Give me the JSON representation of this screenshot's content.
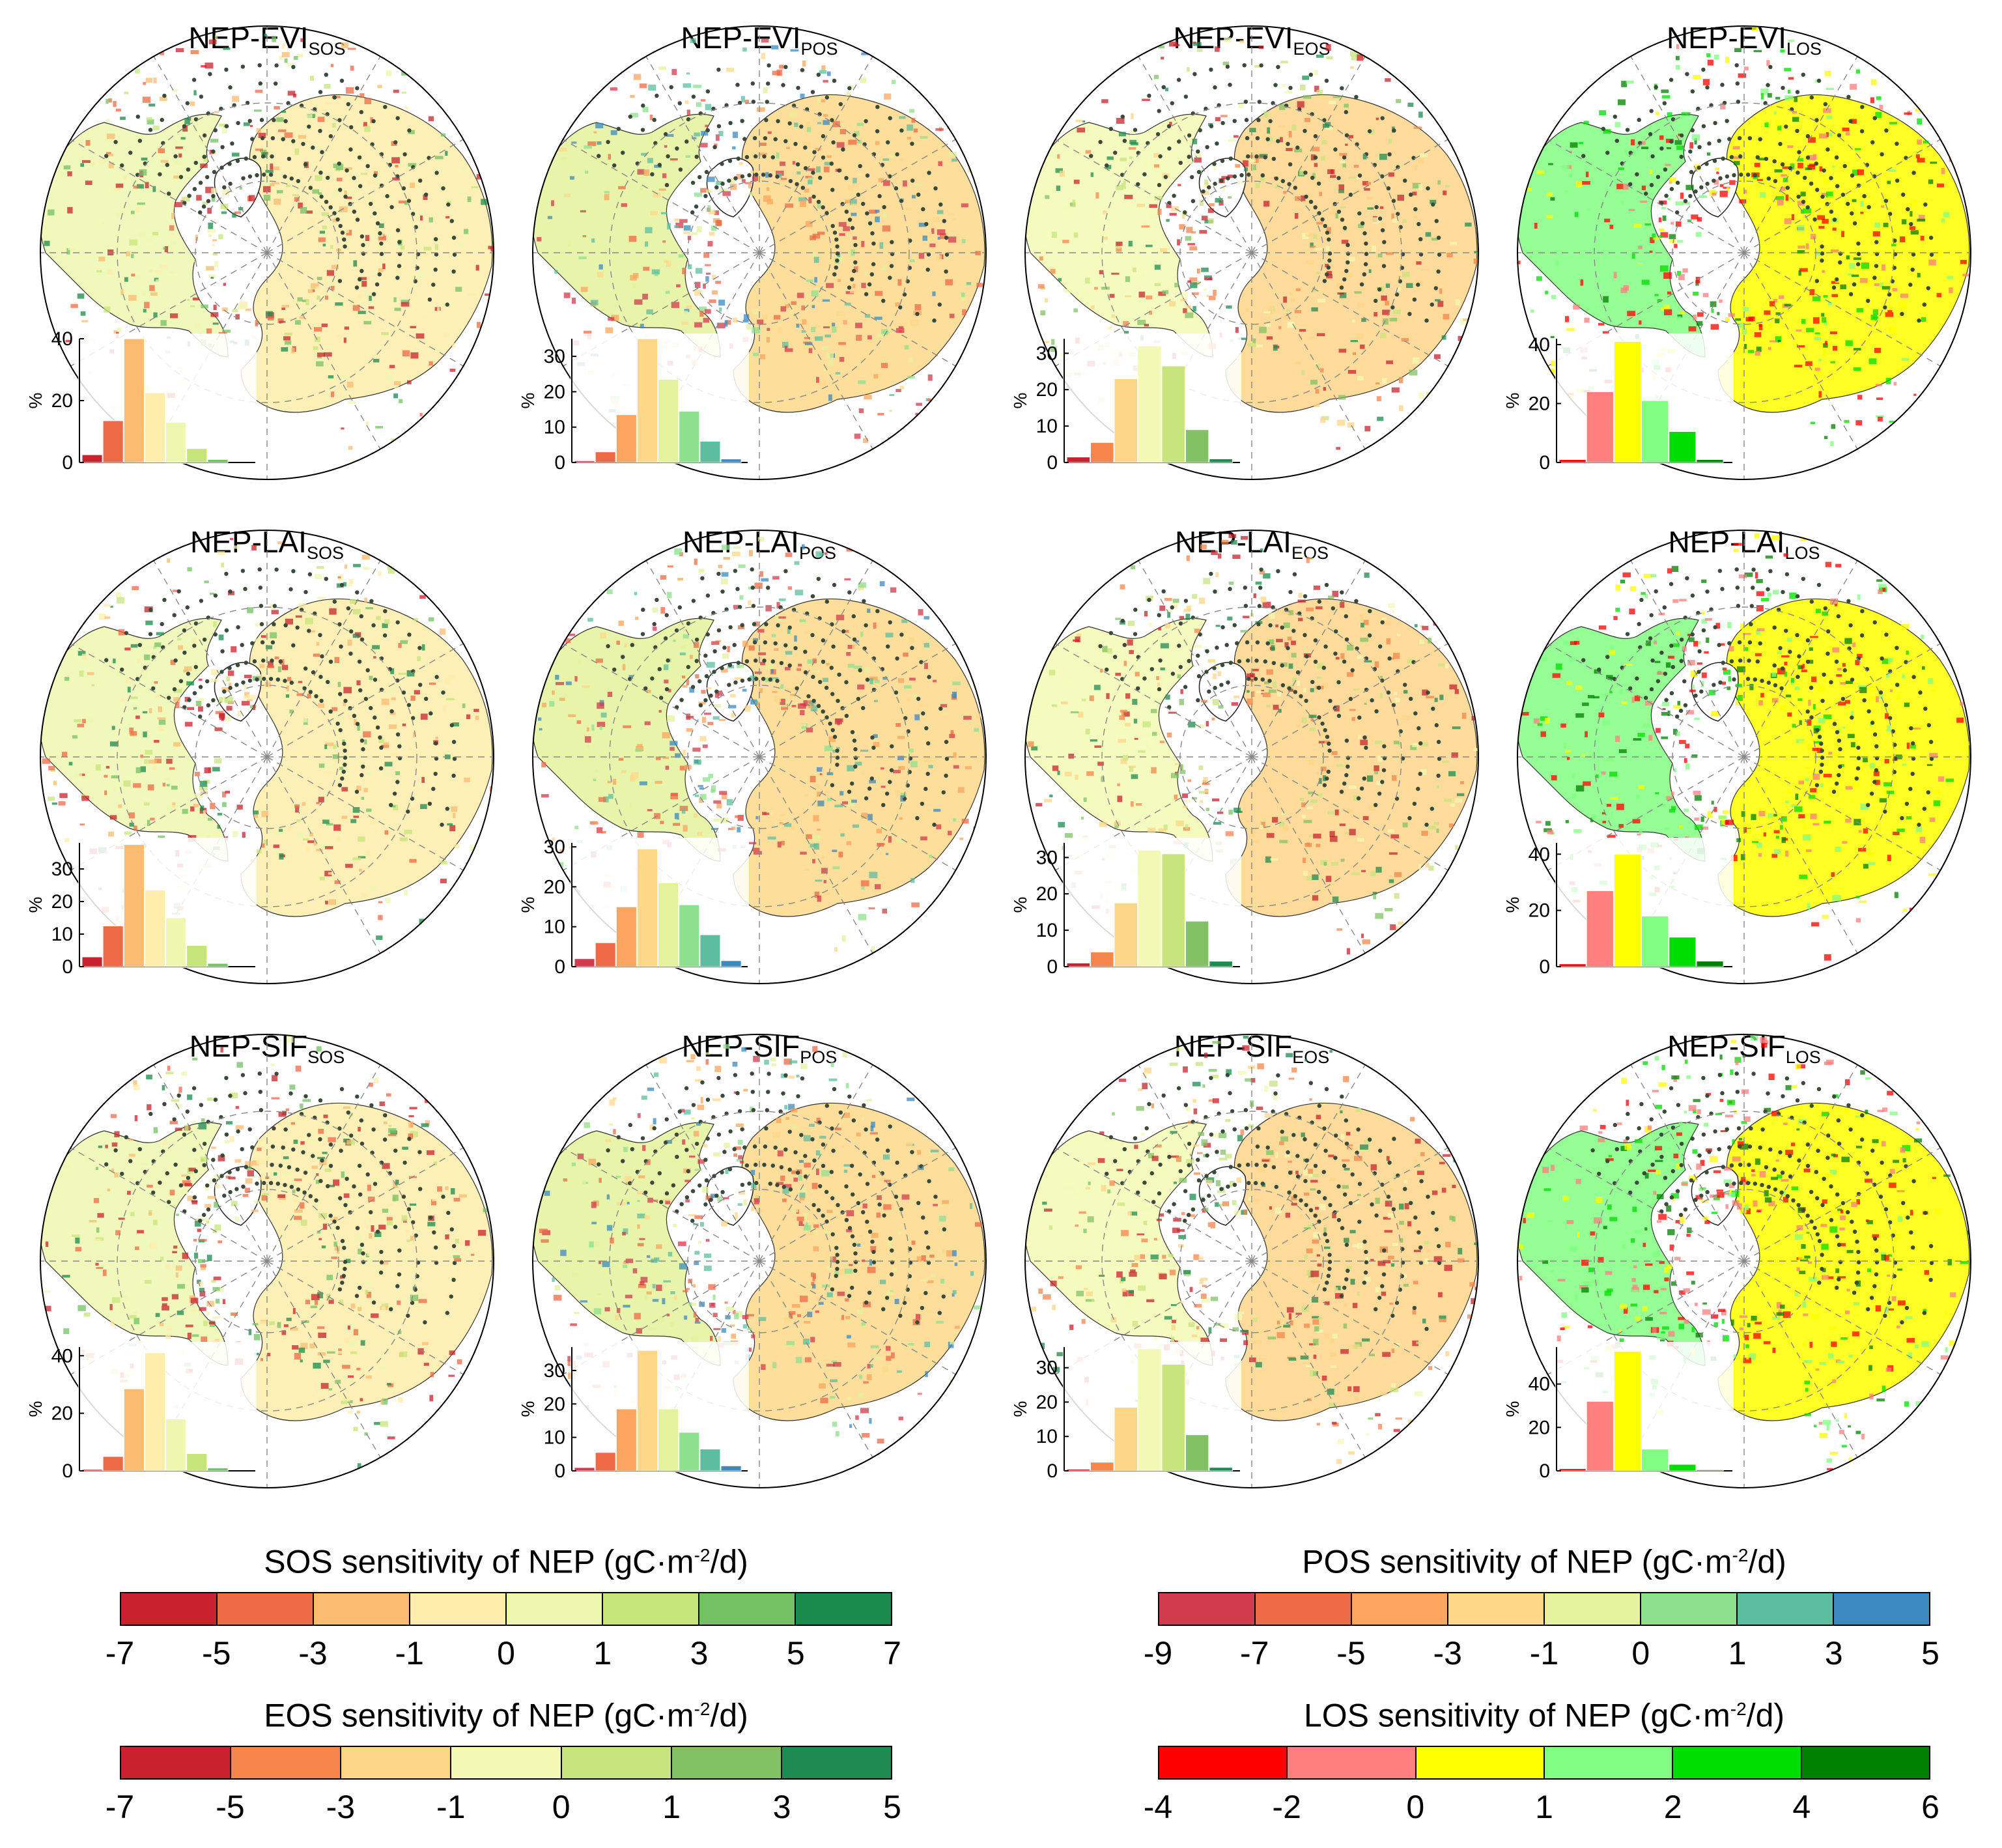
{
  "colors": {
    "SOS": [
      "#c8232c",
      "#ee6a45",
      "#fbbb71",
      "#fdedaa",
      "#eef7b0",
      "#c5e57a",
      "#72c264",
      "#1a8b4c"
    ],
    "POS": [
      "#d13b4c",
      "#ee6a45",
      "#fba55e",
      "#fdd889",
      "#e4f29b",
      "#8de08d",
      "#5cbe9f",
      "#3b89c0"
    ],
    "EOS": [
      "#c8232c",
      "#f6864c",
      "#fdd588",
      "#f3f9b4",
      "#c8e47f",
      "#82c265",
      "#1e8c50"
    ],
    "LOS": [
      "#ff0000",
      "#ff7e7e",
      "#ffff00",
      "#82ff82",
      "#00dd00",
      "#008000"
    ]
  },
  "panels": [
    {
      "id": "evi-sos",
      "row": 0,
      "col": 0,
      "title": "NEP-EVI",
      "sub": "SOS",
      "scheme": "SOS",
      "ytop": 40,
      "yticks": [
        0,
        20,
        40
      ],
      "hist": [
        2.5,
        13.5,
        40,
        22.5,
        13,
        4.5,
        1,
        0
      ]
    },
    {
      "id": "evi-pos",
      "row": 0,
      "col": 1,
      "title": "NEP-EVI",
      "sub": "POS",
      "scheme": "POS",
      "ytop": 35,
      "yticks": [
        0,
        10,
        20,
        30
      ],
      "hist": [
        0.5,
        3,
        13.5,
        35,
        23.5,
        14.5,
        6,
        1
      ]
    },
    {
      "id": "evi-eos",
      "row": 0,
      "col": 2,
      "title": "NEP-EVI",
      "sub": "EOS",
      "scheme": "EOS",
      "ytop": 34,
      "yticks": [
        0,
        10,
        20,
        30
      ],
      "hist": [
        1.5,
        5.5,
        23,
        32,
        26.5,
        9,
        1
      ]
    },
    {
      "id": "evi-los",
      "row": 0,
      "col": 3,
      "title": "NEP-EVI",
      "sub": "LOS",
      "scheme": "LOS",
      "ytop": 42,
      "yticks": [
        0,
        20,
        40
      ],
      "hist": [
        1,
        24,
        41,
        21,
        10.5,
        1
      ]
    },
    {
      "id": "lai-sos",
      "row": 1,
      "col": 0,
      "title": "NEP-LAI",
      "sub": "SOS",
      "scheme": "SOS",
      "ytop": 38,
      "yticks": [
        0,
        10,
        20,
        30
      ],
      "hist": [
        3,
        12.5,
        37.5,
        23.5,
        15,
        6.5,
        1,
        0
      ]
    },
    {
      "id": "lai-pos",
      "row": 1,
      "col": 1,
      "title": "NEP-LAI",
      "sub": "POS",
      "scheme": "POS",
      "ytop": 31,
      "yticks": [
        0,
        10,
        20,
        30
      ],
      "hist": [
        2,
        6,
        15,
        29.5,
        21,
        15.5,
        8,
        1.5
      ]
    },
    {
      "id": "lai-eos",
      "row": 1,
      "col": 2,
      "title": "NEP-LAI",
      "sub": "EOS",
      "scheme": "EOS",
      "ytop": 34,
      "yticks": [
        0,
        10,
        20,
        30
      ],
      "hist": [
        1,
        4,
        17.5,
        32,
        31,
        12.5,
        1.5
      ]
    },
    {
      "id": "lai-los",
      "row": 1,
      "col": 3,
      "title": "NEP-LAI",
      "sub": "LOS",
      "scheme": "LOS",
      "ytop": 44,
      "yticks": [
        0,
        20,
        40
      ],
      "hist": [
        1,
        27,
        40,
        18,
        10.5,
        2
      ]
    },
    {
      "id": "sif-sos",
      "row": 2,
      "col": 0,
      "title": "NEP-SIF",
      "sub": "SOS",
      "scheme": "SOS",
      "ytop": 43,
      "yticks": [
        0,
        20,
        40
      ],
      "hist": [
        0.5,
        5,
        28.5,
        41,
        18,
        6,
        1,
        0
      ]
    },
    {
      "id": "sif-pos",
      "row": 2,
      "col": 1,
      "title": "NEP-SIF",
      "sub": "POS",
      "scheme": "POS",
      "ytop": 37,
      "yticks": [
        0,
        10,
        20,
        30
      ],
      "hist": [
        1,
        5.5,
        18.5,
        36,
        18.5,
        11.5,
        6.5,
        1.5
      ]
    },
    {
      "id": "sif-eos",
      "row": 2,
      "col": 2,
      "title": "NEP-SIF",
      "sub": "EOS",
      "scheme": "EOS",
      "ytop": 36,
      "yticks": [
        0,
        10,
        20,
        30
      ],
      "hist": [
        0.5,
        2.5,
        18.5,
        35.5,
        31,
        10.5,
        1
      ]
    },
    {
      "id": "sif-los",
      "row": 2,
      "col": 3,
      "title": "NEP-SIF",
      "sub": "LOS",
      "scheme": "LOS",
      "ytop": 57,
      "yticks": [
        0,
        20,
        40
      ],
      "hist": [
        1,
        32,
        55,
        10,
        3,
        0.5
      ]
    }
  ],
  "y_unit": "%",
  "legends": [
    {
      "id": "sos",
      "title_pre": "SOS sensitivity of NEP (gC·m",
      "title_sup": "-2",
      "title_post": "/d)",
      "scheme": "SOS",
      "ticks": [
        "-7",
        "-5",
        "-3",
        "-1",
        "0",
        "1",
        "3",
        "5",
        "7"
      ]
    },
    {
      "id": "pos",
      "title_pre": "POS sensitivity of NEP (gC·m",
      "title_sup": "-2",
      "title_post": "/d)",
      "scheme": "POS",
      "ticks": [
        "-9",
        "-7",
        "-5",
        "-3",
        "-1",
        "0",
        "1",
        "3",
        "5"
      ]
    },
    {
      "id": "eos",
      "title_pre": "EOS sensitivity of NEP (gC·m",
      "title_sup": "-2",
      "title_post": "/d)",
      "scheme": "EOS",
      "ticks": [
        "-7",
        "-5",
        "-3",
        "-1",
        "0",
        "1",
        "3",
        "5"
      ]
    },
    {
      "id": "los",
      "title_pre": "LOS sensitivity of NEP (gC·m",
      "title_sup": "-2",
      "title_post": "/d)",
      "scheme": "LOS",
      "ticks": [
        "-4",
        "-2",
        "0",
        "1",
        "2",
        "4",
        "6"
      ]
    }
  ]
}
